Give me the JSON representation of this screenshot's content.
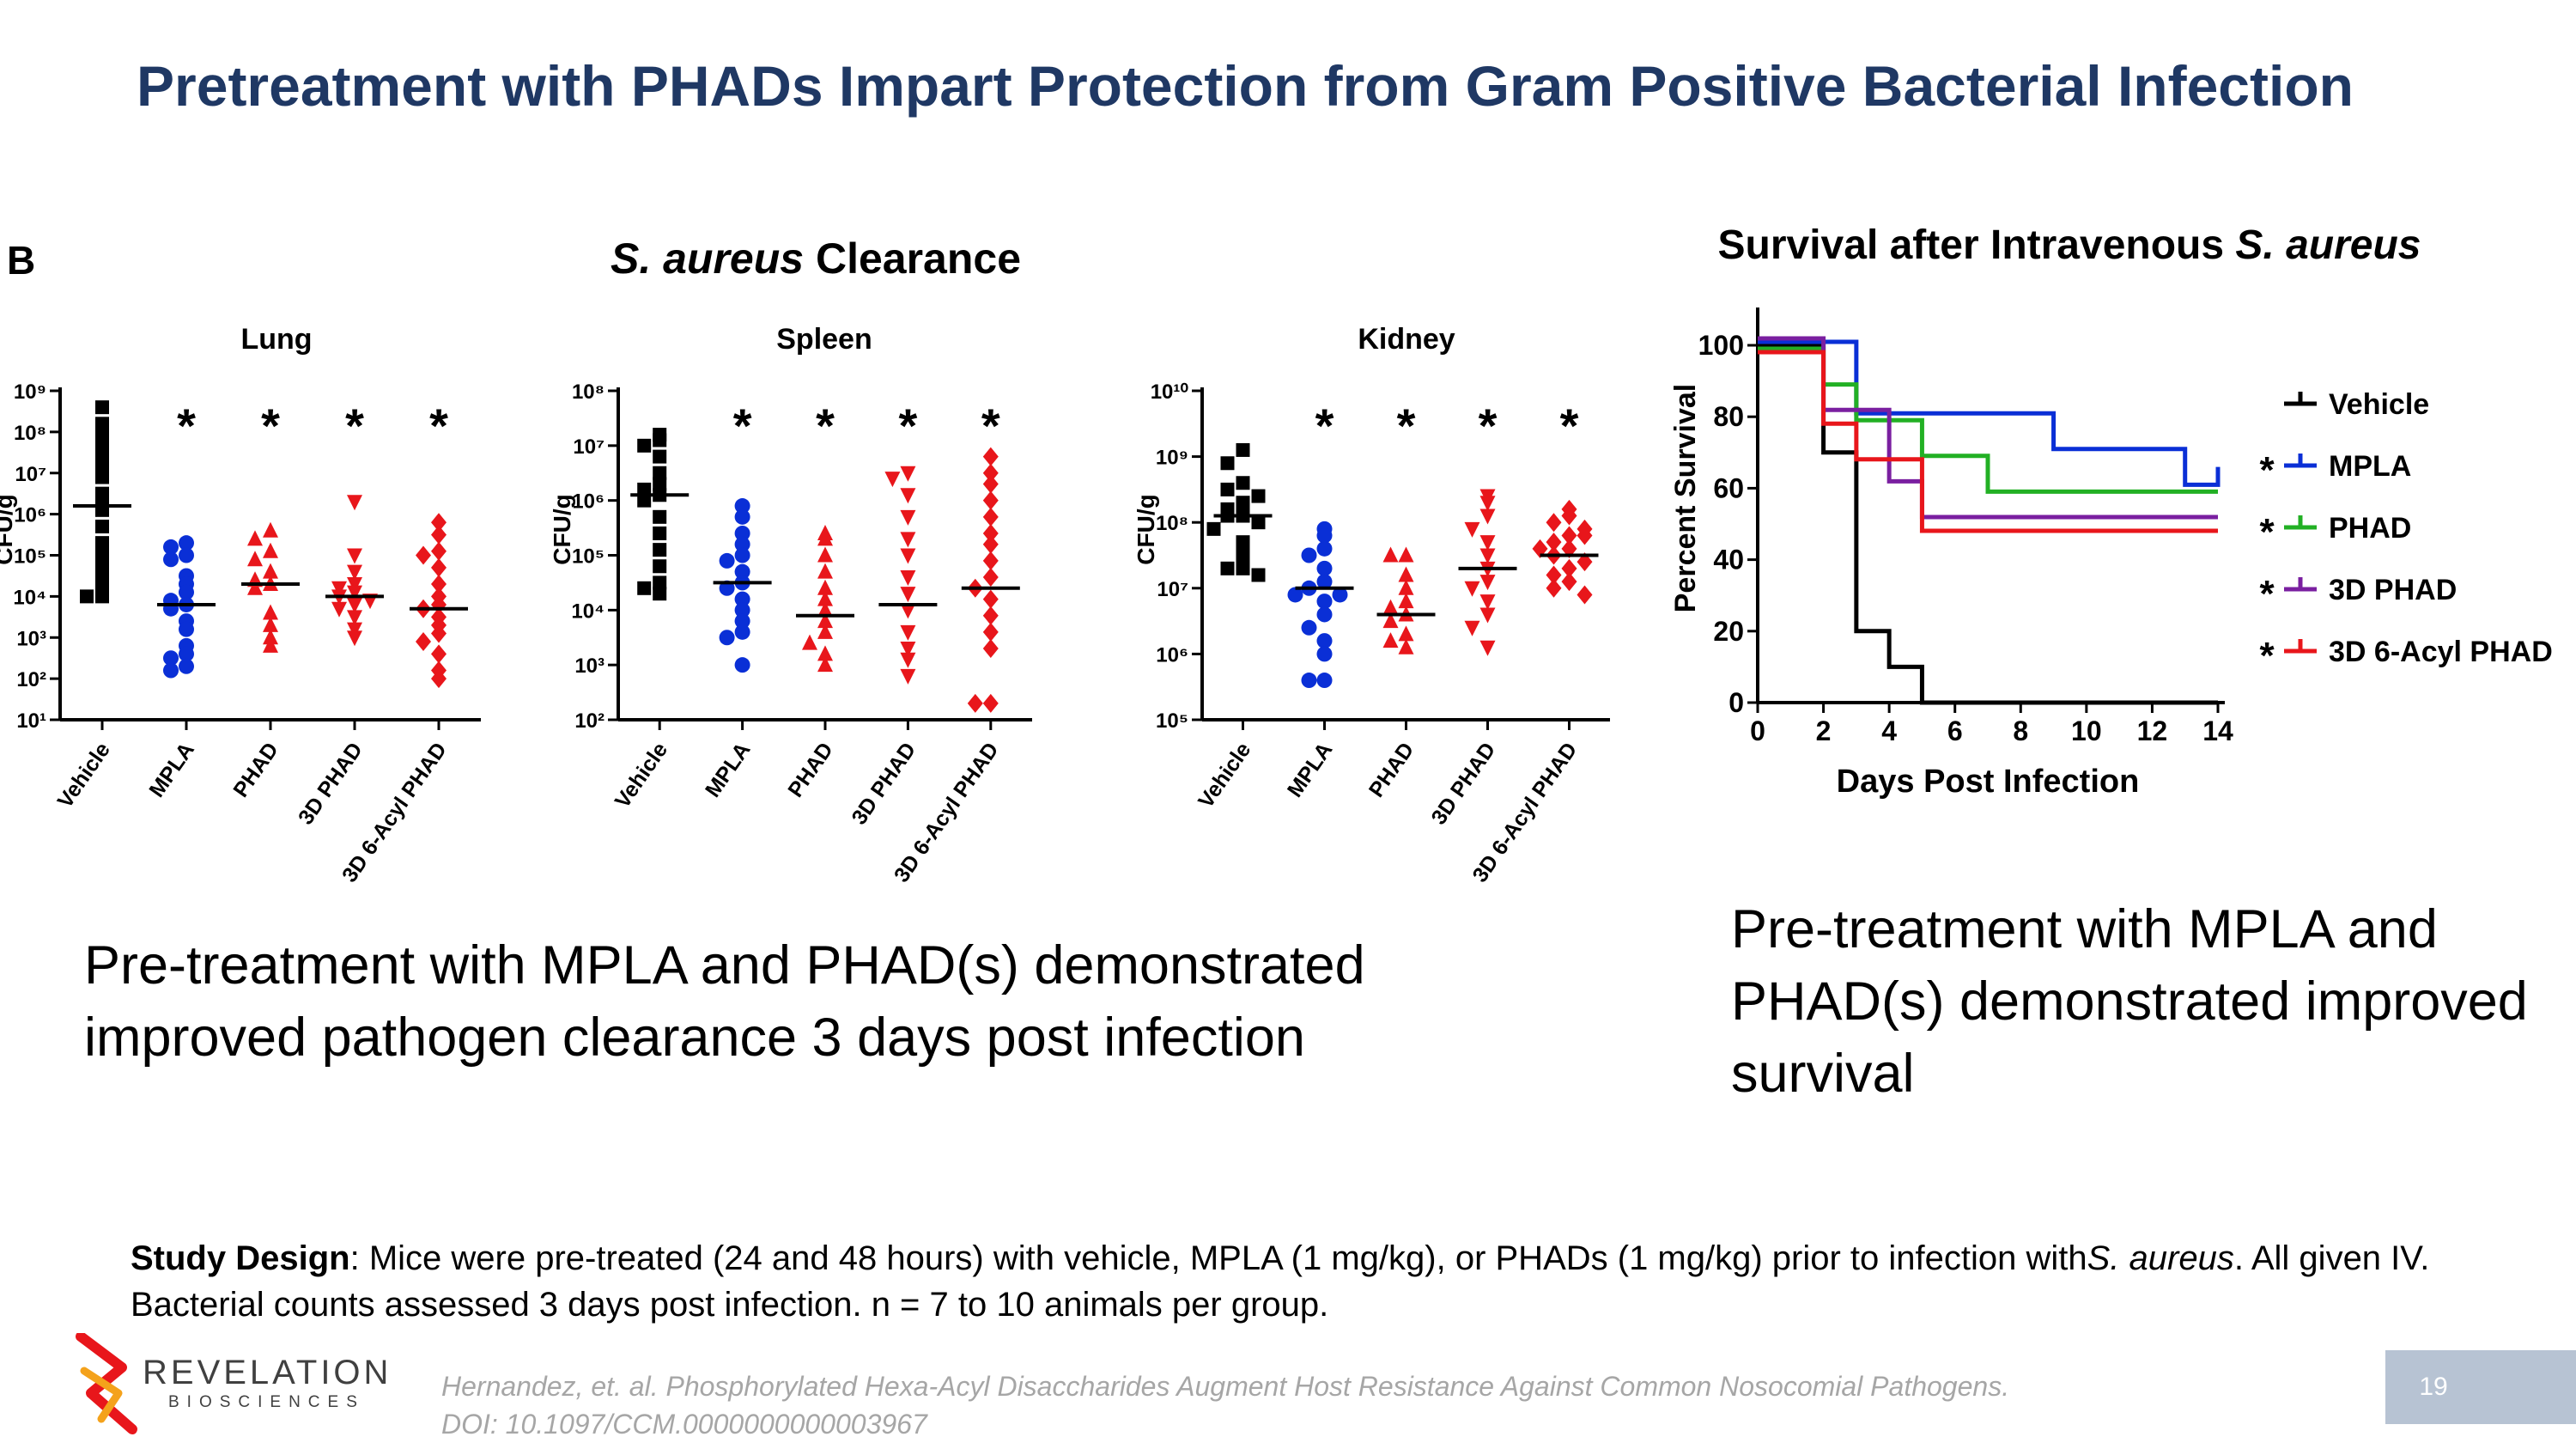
{
  "title": "Pretreatment with PHADs Impart Protection from Gram Positive Bacterial Infection",
  "panel_letter": "B",
  "clearance_title": {
    "organism": "S. aureus",
    "rest": " Clearance"
  },
  "survival_title": {
    "prefix": "Survival after Intravenous ",
    "organism": "S. aureus"
  },
  "colors": {
    "title": "#1f3864",
    "vehicle": "#000000",
    "mpla": "#0a2fd6",
    "phad": "#e8161b",
    "purple": "#7a1fa0",
    "green": "#22b024"
  },
  "chart_data": [
    {
      "type": "scatter",
      "title": "Lung",
      "ylabel": "CFU/g",
      "yscale": "log",
      "ylim": [
        1,
        9
      ],
      "ytick_labels": [
        "10¹",
        "10²",
        "10³",
        "10⁴",
        "10⁵",
        "10⁶",
        "10⁷",
        "10⁸",
        "10⁹"
      ],
      "categories": [
        "Vehicle",
        "MPLA",
        "PHAD",
        "3D PHAD",
        "3D 6-Acyl PHAD"
      ],
      "significant": [
        "",
        "*",
        "*",
        "*",
        "*"
      ],
      "medians": [
        6.2,
        3.8,
        4.3,
        4.0,
        3.7
      ],
      "series": [
        {
          "name": "Vehicle",
          "marker": "square",
          "color": "#000000",
          "values": [
            8.6,
            8.2,
            7.9,
            7.7,
            7.5,
            7.2,
            6.9,
            6.5,
            6.2,
            6.1,
            5.7,
            5.3,
            5.0,
            4.7,
            4.4,
            4.3,
            4.0,
            4.0
          ]
        },
        {
          "name": "MPLA",
          "marker": "circle",
          "color": "#0a2fd6",
          "values": [
            5.3,
            5.2,
            5.0,
            4.9,
            4.5,
            4.3,
            4.1,
            3.9,
            3.8,
            3.7,
            3.4,
            3.2,
            2.8,
            2.6,
            2.5,
            2.3,
            2.2
          ]
        },
        {
          "name": "PHAD",
          "marker": "triangle-up",
          "color": "#e8161b",
          "values": [
            5.6,
            5.4,
            5.1,
            4.9,
            4.6,
            4.4,
            4.3,
            4.2,
            3.6,
            3.3,
            3.0,
            2.8
          ]
        },
        {
          "name": "3D PHAD",
          "marker": "triangle-down",
          "color": "#e8161b",
          "values": [
            6.3,
            5.0,
            4.6,
            4.3,
            4.2,
            4.1,
            4.0,
            3.9,
            3.8,
            3.7,
            3.5,
            3.2,
            3.0
          ]
        },
        {
          "name": "3D 6-Acyl PHAD",
          "marker": "diamond",
          "color": "#e8161b",
          "values": [
            5.8,
            5.5,
            5.1,
            5.0,
            4.7,
            4.3,
            4.0,
            3.8,
            3.7,
            3.5,
            3.3,
            3.1,
            2.9,
            2.6,
            2.2,
            2.0
          ]
        }
      ]
    },
    {
      "type": "scatter",
      "title": "Spleen",
      "ylabel": "CFU/g",
      "yscale": "log",
      "ylim": [
        2,
        8
      ],
      "ytick_labels": [
        "10²",
        "10³",
        "10⁴",
        "10⁵",
        "10⁶",
        "10⁷",
        "10⁸"
      ],
      "categories": [
        "Vehicle",
        "MPLA",
        "PHAD",
        "3D PHAD",
        "3D 6-Acyl PHAD"
      ],
      "significant": [
        "",
        "*",
        "*",
        "*",
        "*"
      ],
      "medians": [
        6.1,
        4.5,
        3.9,
        4.1,
        4.4
      ],
      "series": [
        {
          "name": "Vehicle",
          "marker": "square",
          "color": "#000000",
          "values": [
            7.2,
            7.1,
            7.0,
            6.8,
            6.5,
            6.3,
            6.2,
            6.1,
            6.0,
            5.7,
            5.4,
            5.1,
            4.8,
            4.5,
            4.4,
            4.3
          ]
        },
        {
          "name": "MPLA",
          "marker": "circle",
          "color": "#0a2fd6",
          "values": [
            5.9,
            5.7,
            5.4,
            5.2,
            5.0,
            4.9,
            4.7,
            4.5,
            4.4,
            4.2,
            4.0,
            3.8,
            3.6,
            3.5,
            3.0
          ]
        },
        {
          "name": "PHAD",
          "marker": "triangle-up",
          "color": "#e8161b",
          "values": [
            5.4,
            5.3,
            5.0,
            4.7,
            4.4,
            4.2,
            4.0,
            3.8,
            3.6,
            3.4,
            3.2,
            3.0
          ]
        },
        {
          "name": "3D PHAD",
          "marker": "triangle-down",
          "color": "#e8161b",
          "values": [
            6.5,
            6.4,
            6.1,
            5.7,
            5.3,
            5.0,
            4.6,
            4.3,
            4.0,
            3.6,
            3.3,
            3.1,
            2.8
          ]
        },
        {
          "name": "3D 6-Acyl PHAD",
          "marker": "diamond",
          "color": "#e8161b",
          "values": [
            6.8,
            6.5,
            6.3,
            6.0,
            5.7,
            5.4,
            5.2,
            4.9,
            4.6,
            4.4,
            4.2,
            3.9,
            3.6,
            3.3,
            2.3,
            2.3
          ]
        }
      ]
    },
    {
      "type": "scatter",
      "title": "Kidney",
      "ylabel": "CFU/g",
      "yscale": "log",
      "ylim": [
        5,
        10
      ],
      "ytick_labels": [
        "10⁵",
        "10⁶",
        "10⁷",
        "10⁸",
        "10⁹",
        "10¹⁰"
      ],
      "categories": [
        "Vehicle",
        "MPLA",
        "PHAD",
        "3D PHAD",
        "3D 6-Acyl PHAD"
      ],
      "significant": [
        "",
        "*",
        "*",
        "*",
        "*"
      ],
      "medians": [
        8.1,
        7.0,
        6.6,
        7.3,
        7.5
      ],
      "series": [
        {
          "name": "Vehicle",
          "marker": "square",
          "color": "#000000",
          "values": [
            9.1,
            8.9,
            8.6,
            8.5,
            8.4,
            8.3,
            8.2,
            8.1,
            8.1,
            8.0,
            7.9,
            7.7,
            7.5,
            7.3,
            7.3,
            7.2
          ]
        },
        {
          "name": "MPLA",
          "marker": "circle",
          "color": "#0a2fd6",
          "values": [
            7.9,
            7.8,
            7.6,
            7.5,
            7.3,
            7.1,
            7.0,
            6.9,
            6.9,
            6.8,
            6.6,
            6.4,
            6.2,
            6.0,
            5.6,
            5.6
          ]
        },
        {
          "name": "PHAD",
          "marker": "triangle-up",
          "color": "#e8161b",
          "values": [
            7.5,
            7.5,
            7.2,
            7.0,
            6.8,
            6.7,
            6.6,
            6.5,
            6.3,
            6.2,
            6.1
          ]
        },
        {
          "name": "3D PHAD",
          "marker": "triangle-down",
          "color": "#e8161b",
          "values": [
            8.4,
            8.3,
            8.1,
            7.9,
            7.7,
            7.5,
            7.3,
            7.1,
            7.0,
            6.8,
            6.6,
            6.4,
            6.1
          ]
        },
        {
          "name": "3D 6-Acyl PHAD",
          "marker": "diamond",
          "color": "#e8161b",
          "values": [
            8.2,
            8.1,
            8.0,
            7.9,
            7.8,
            7.7,
            7.6,
            7.5,
            7.4,
            7.3,
            7.2,
            7.1,
            7.0,
            6.9,
            7.6,
            7.8
          ]
        }
      ]
    },
    {
      "type": "line",
      "step": true,
      "xlabel": "Days Post Infection",
      "ylabel": "Percent Survival",
      "xlim": [
        0,
        14
      ],
      "ylim": [
        0,
        100
      ],
      "xticks": [
        0,
        2,
        4,
        6,
        8,
        10,
        12,
        14
      ],
      "yticks": [
        0,
        20,
        40,
        60,
        80,
        100
      ],
      "legend": "right",
      "series": [
        {
          "name": "Vehicle",
          "color": "#000000",
          "significant": "",
          "x": [
            0,
            2,
            3,
            4,
            5
          ],
          "y": [
            100,
            70,
            20,
            10,
            0
          ]
        },
        {
          "name": "MPLA",
          "color": "#0a2fd6",
          "significant": "*",
          "x": [
            0,
            3,
            9,
            13,
            14
          ],
          "y": [
            100,
            80,
            70,
            60,
            65
          ]
        },
        {
          "name": "PHAD",
          "color": "#22b024",
          "significant": "*",
          "x": [
            0,
            2,
            3,
            5,
            7,
            14
          ],
          "y": [
            100,
            90,
            80,
            70,
            60,
            60
          ]
        },
        {
          "name": "3D PHAD",
          "color": "#7a1fa0",
          "significant": "*",
          "x": [
            0,
            2,
            4,
            5,
            14
          ],
          "y": [
            100,
            80,
            60,
            50,
            50
          ]
        },
        {
          "name": "3D 6-Acyl PHAD",
          "color": "#e8161b",
          "significant": "*",
          "x": [
            0,
            2,
            3,
            5,
            14
          ],
          "y": [
            100,
            80,
            70,
            50,
            50
          ]
        }
      ]
    }
  ],
  "caption_left": "Pre-treatment with MPLA and PHAD(s) demonstrated improved pathogen clearance 3 days post infection",
  "caption_right": "Pre-treatment with MPLA and PHAD(s) demonstrated improved survival",
  "study": {
    "label": "Study Design",
    "text1": ": Mice were pre-treated (24 and 48 hours) with vehicle, MPLA (1 mg/kg), or PHADs (1 mg/kg) prior to infection with",
    "organism": "S. aureus",
    "text2": ".  All given IV.  Bacterial counts assessed 3 days post infection. n = 7 to 10 animals per group."
  },
  "logo": {
    "name": "REVELATION",
    "sub": "BIOSCIENCES"
  },
  "citation": {
    "line1": "Hernandez, et. al. Phosphorylated Hexa-Acyl Disaccharides Augment Host Resistance Against Common Nosocomial Pathogens.",
    "line2": "DOI: 10.1097/CCM.0000000000003967"
  },
  "page_number": "19"
}
